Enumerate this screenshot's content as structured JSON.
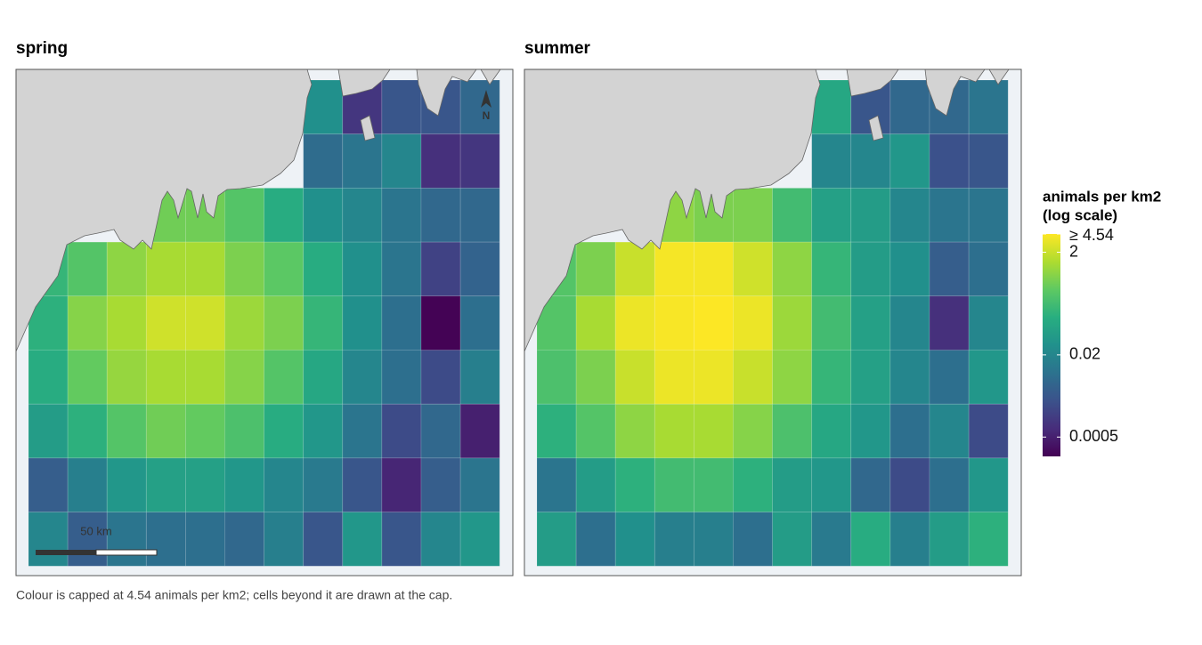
{
  "chart_data": {
    "type": "grid-map",
    "panels": [
      {
        "title": "spring",
        "values": [
          [
            null,
            null,
            null,
            null,
            null,
            null,
            null,
            0.03,
            0.001,
            0.003,
            0.003,
            0.006
          ],
          [
            null,
            null,
            null,
            null,
            null,
            null,
            null,
            0.007,
            0.01,
            0.02,
            0.0008,
            0.001
          ],
          [
            null,
            null,
            null,
            0.5,
            0.5,
            0.3,
            0.1,
            0.03,
            0.02,
            0.01,
            0.006,
            0.006
          ],
          [
            0.15,
            0.3,
            0.8,
            1.2,
            1.2,
            0.6,
            0.35,
            0.1,
            0.03,
            0.01,
            0.0015,
            0.005
          ],
          [
            0.12,
            0.7,
            1.2,
            2.2,
            2.2,
            1.0,
            0.6,
            0.15,
            0.03,
            0.008,
            0.00022,
            0.008
          ],
          [
            0.1,
            0.4,
            0.9,
            1.2,
            1.2,
            0.7,
            0.3,
            0.08,
            0.02,
            0.008,
            0.002,
            0.015
          ],
          [
            0.05,
            0.12,
            0.3,
            0.5,
            0.4,
            0.25,
            0.1,
            0.04,
            0.01,
            0.002,
            0.006,
            0.0005
          ],
          [
            0.004,
            0.015,
            0.04,
            0.06,
            0.06,
            0.04,
            0.02,
            0.012,
            0.003,
            0.0006,
            0.004,
            0.01
          ],
          [
            0.02,
            0.004,
            0.01,
            0.008,
            0.008,
            0.006,
            0.015,
            0.003,
            0.04,
            0.003,
            0.02,
            0.04
          ]
        ],
        "north_label": "N",
        "scale_label": "50 km"
      },
      {
        "title": "summer",
        "values": [
          [
            null,
            null,
            null,
            null,
            null,
            null,
            null,
            0.08,
            0.003,
            0.006,
            0.006,
            0.01
          ],
          [
            null,
            null,
            null,
            null,
            null,
            null,
            null,
            0.02,
            0.02,
            0.04,
            0.0025,
            0.003
          ],
          [
            null,
            null,
            null,
            0.8,
            0.6,
            0.6,
            0.2,
            0.06,
            0.05,
            0.02,
            0.01,
            0.01
          ],
          [
            0.3,
            0.6,
            2.0,
            4.0,
            4.0,
            2.2,
            0.8,
            0.15,
            0.05,
            0.03,
            0.004,
            0.008
          ],
          [
            0.3,
            1.2,
            3.5,
            4.2,
            4.5,
            3.5,
            1.0,
            0.2,
            0.06,
            0.02,
            0.0008,
            0.02
          ],
          [
            0.25,
            0.6,
            2.0,
            3.5,
            3.5,
            2.0,
            0.8,
            0.15,
            0.06,
            0.02,
            0.008,
            0.04
          ],
          [
            0.12,
            0.3,
            0.8,
            1.2,
            1.2,
            0.7,
            0.25,
            0.08,
            0.04,
            0.008,
            0.02,
            0.002
          ],
          [
            0.01,
            0.05,
            0.12,
            0.2,
            0.2,
            0.12,
            0.05,
            0.04,
            0.006,
            0.002,
            0.008,
            0.04
          ],
          [
            0.05,
            0.008,
            0.03,
            0.015,
            0.015,
            0.008,
            0.05,
            0.012,
            0.1,
            0.015,
            0.05,
            0.12
          ]
        ]
      }
    ],
    "legend_title": [
      "animals per km2",
      "(log scale)"
    ],
    "colormap": "viridis",
    "log_scale": true,
    "clim": [
      0.00021,
      4.54
    ],
    "cticks": [
      {
        "value": 4.54,
        "label": "≥ 4.54"
      },
      2,
      0.02,
      0.0005
    ],
    "caption": "Colour is capped at 4.54 animals per km2; cells beyond it are drawn at the cap."
  }
}
